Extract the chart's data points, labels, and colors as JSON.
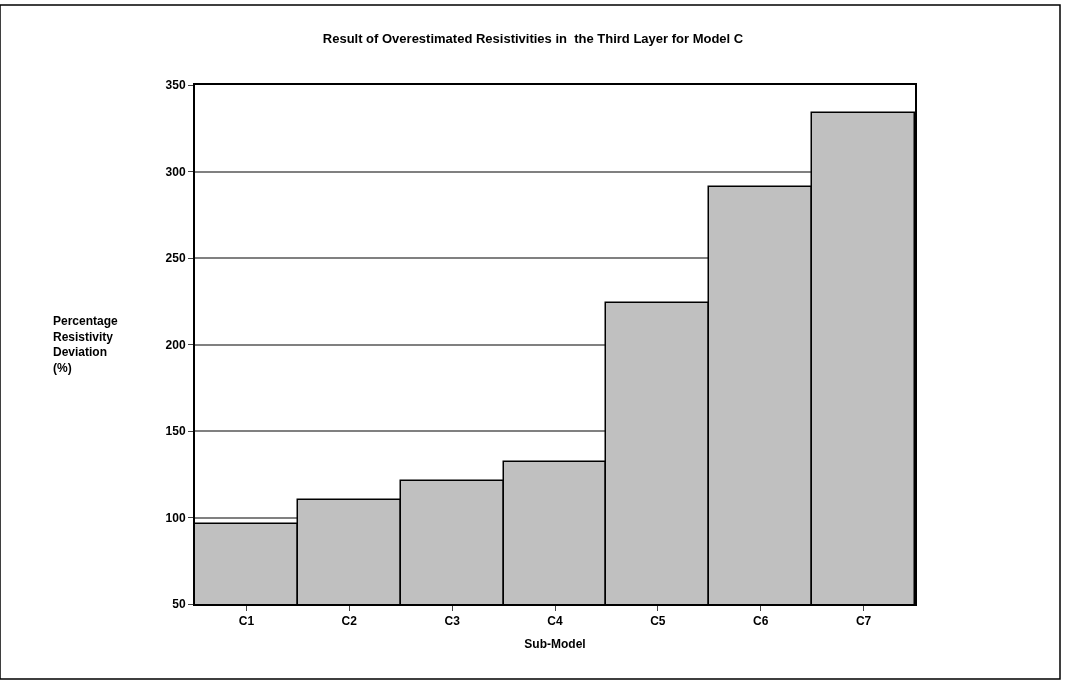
{
  "chart_data": {
    "type": "bar",
    "title": "Result of Overestimated Resistivities in  the Third Layer for Model C",
    "xlabel": "Sub-Model",
    "ylabel": "Percentage\nResistivity\nDeviation\n(%)",
    "categories": [
      "C1",
      "C2",
      "C3",
      "C4",
      "C5",
      "C6",
      "C7"
    ],
    "values": [
      96,
      110,
      121,
      132,
      224,
      291,
      334
    ],
    "color": "#c0c0c0",
    "ylim": [
      50,
      350
    ],
    "yticks": [
      50,
      100,
      150,
      200,
      250,
      300,
      350
    ],
    "grid": "y"
  }
}
